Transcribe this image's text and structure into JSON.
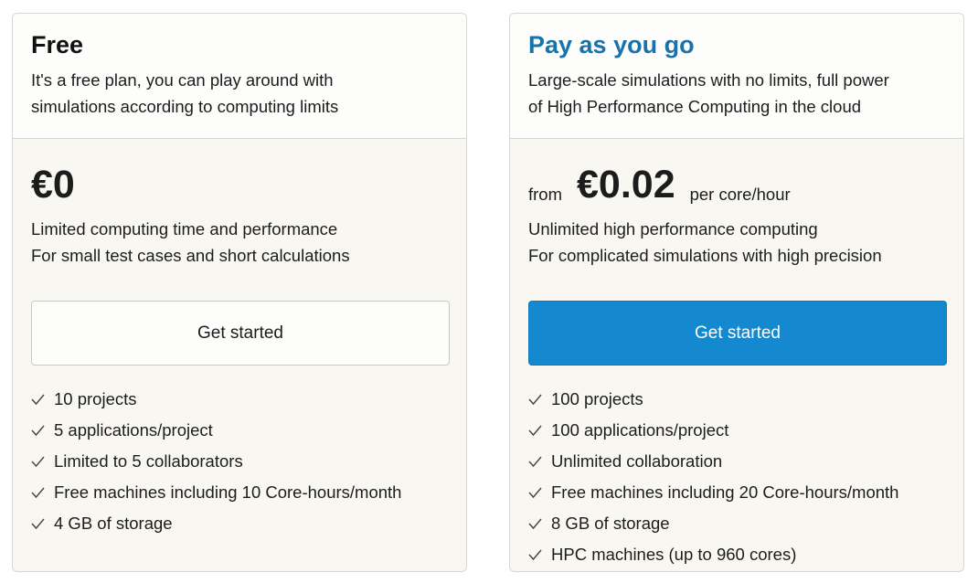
{
  "plans": [
    {
      "title": "Free",
      "description": [
        "It's a free plan, you can play around with",
        "simulations according to computing limits"
      ],
      "price_prefix": null,
      "price": "€0",
      "price_suffix": null,
      "details": [
        "Limited computing time and performance",
        "For small test cases and short calculations"
      ],
      "button": "Get started",
      "features": [
        "10 projects",
        "5 applications/project",
        "Limited to 5 collaborators",
        "Free machines including 10 Core-hours/month",
        "4 GB of storage"
      ]
    },
    {
      "title": "Pay as you go",
      "description": [
        "Large-scale simulations with no limits, full power",
        "of High Performance Computing in the cloud"
      ],
      "price_prefix": "from",
      "price": "€0.02",
      "price_suffix": "per core/hour",
      "details": [
        "Unlimited high performance computing",
        "For complicated simulations with high precision"
      ],
      "button": "Get started",
      "features": [
        "100 projects",
        "100 applications/project",
        "Unlimited collaboration",
        "Free machines including 20 Core-hours/month",
        "8 GB of storage",
        "HPC machines (up to 960 cores)"
      ]
    }
  ]
}
